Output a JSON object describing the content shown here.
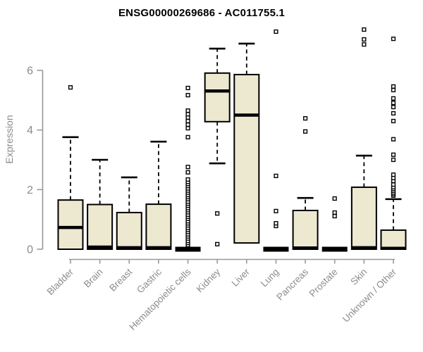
{
  "chart_data": {
    "type": "boxplot",
    "title": "ENSG00000269686 - AC011755.1",
    "ylabel": "Expression",
    "xlabel": "",
    "yticks": [
      0,
      2,
      4,
      6
    ],
    "ylim": [
      0,
      7.5
    ],
    "grid": false,
    "legend_position": "none",
    "colors": {
      "box_fill": "#EDE8D0",
      "box_stroke": "#000000",
      "median": "#000000",
      "outlier_stroke": "#000000",
      "outlier_fill": "#FFFFFF",
      "axis": "#999999",
      "tick_label": "#8C8C8C",
      "title": "#000000",
      "background": "#FFFFFF"
    },
    "categories": [
      "Bladder",
      "Brain",
      "Breast",
      "Gastric",
      "Hematopoietic cells",
      "Kidney",
      "Liver",
      "Lung",
      "Pancreas",
      "Prostate",
      "Skin",
      "Unknown / Other"
    ],
    "boxes": [
      {
        "category": "Bladder",
        "whisker_low": 0,
        "q1": 0,
        "median": 0.73,
        "q3": 1.65,
        "whisker_high": 3.76,
        "outliers": [
          5.43
        ]
      },
      {
        "category": "Brain",
        "whisker_low": 0,
        "q1": 0,
        "median": 0.07,
        "q3": 1.5,
        "whisker_high": 3.0,
        "outliers": []
      },
      {
        "category": "Breast",
        "whisker_low": 0,
        "q1": 0,
        "median": 0.05,
        "q3": 1.23,
        "whisker_high": 2.41,
        "outliers": []
      },
      {
        "category": "Gastric",
        "whisker_low": 0,
        "q1": 0,
        "median": 0.05,
        "q3": 1.51,
        "whisker_high": 3.61,
        "outliers": []
      },
      {
        "category": "Hematopoietic cells",
        "whisker_low": 0,
        "q1": 0,
        "median": 0,
        "q3": 0,
        "whisker_high": 0,
        "outliers": [
          0.14,
          0.21,
          0.28,
          0.36,
          0.43,
          0.5,
          0.58,
          0.65,
          0.72,
          0.8,
          0.87,
          0.94,
          1.02,
          1.09,
          1.16,
          1.24,
          1.31,
          1.38,
          1.46,
          1.53,
          1.6,
          1.68,
          1.75,
          1.82,
          1.9,
          1.97,
          2.04,
          2.12,
          2.19,
          2.26,
          2.34,
          2.58,
          2.76,
          3.76,
          4.06,
          4.18,
          4.3,
          4.42,
          4.53,
          4.65,
          5.17,
          5.41
        ]
      },
      {
        "category": "Kidney",
        "whisker_low": 2.88,
        "q1": 4.28,
        "median": 5.31,
        "q3": 5.91,
        "whisker_high": 6.73,
        "outliers": [
          0.17,
          1.2
        ]
      },
      {
        "category": "Liver",
        "whisker_low": 0.21,
        "q1": 0.21,
        "median": 4.5,
        "q3": 5.86,
        "whisker_high": 6.9,
        "outliers": []
      },
      {
        "category": "Lung",
        "whisker_low": 0,
        "q1": 0,
        "median": 0,
        "q3": 0,
        "whisker_high": 0,
        "outliers": [
          0.78,
          0.87,
          1.28,
          2.46,
          7.3
        ]
      },
      {
        "category": "Pancreas",
        "whisker_low": 0,
        "q1": 0,
        "median": 0.04,
        "q3": 1.3,
        "whisker_high": 1.72,
        "outliers": [
          3.95,
          4.39
        ]
      },
      {
        "category": "Prostate",
        "whisker_low": 0,
        "q1": 0,
        "median": 0,
        "q3": 0,
        "whisker_high": 0,
        "outliers": [
          1.11,
          1.23,
          1.7
        ]
      },
      {
        "category": "Skin",
        "whisker_low": 0,
        "q1": 0,
        "median": 0.05,
        "q3": 2.08,
        "whisker_high": 3.14,
        "outliers": [
          6.87,
          7.04,
          7.37
        ]
      },
      {
        "category": "Unknown / Other",
        "whisker_low": 0,
        "q1": 0,
        "median": 0.03,
        "q3": 0.64,
        "whisker_high": 1.68,
        "outliers": [
          1.8,
          1.85,
          1.9,
          1.96,
          2.02,
          2.08,
          2.17,
          2.29,
          2.39,
          2.5,
          3.0,
          3.17,
          3.69,
          4.3,
          4.56,
          4.77,
          4.91,
          5.06,
          5.34,
          5.46,
          7.06
        ]
      }
    ]
  }
}
